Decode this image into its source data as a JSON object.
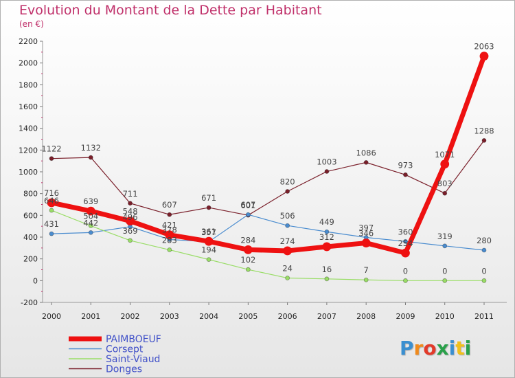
{
  "header": {
    "title": "Evolution du Montant de la Dette par Habitant",
    "unit": "(en €)"
  },
  "logo": {
    "text": "Proxiti",
    "colors": [
      "#3a8fd0",
      "#f08a1c",
      "#e23a2a",
      "#2aa04a",
      "#3a8fd0",
      "#f0c01c",
      "#2aa04a"
    ]
  },
  "chart_data": {
    "type": "line",
    "title": "Evolution du Montant de la Dette par Habitant",
    "ylabel": "(en €)",
    "xlabel": "",
    "x": [
      "2000",
      "2001",
      "2002",
      "2003",
      "2004",
      "2005",
      "2006",
      "2007",
      "2008",
      "2009",
      "2010",
      "2011"
    ],
    "ylim": [
      -200,
      2200
    ],
    "yticks": [
      -200,
      0,
      200,
      400,
      600,
      800,
      1000,
      1200,
      1400,
      1600,
      1800,
      2000,
      2200
    ],
    "grid": false,
    "legend": "bottom-left",
    "series": [
      {
        "name": "Donges",
        "color": "#7a1f2a",
        "width": 1.2,
        "marker": 3,
        "values": [
          1122,
          1132,
          711,
          607,
          671,
          601,
          820,
          1003,
          1086,
          973,
          803,
          1288
        ],
        "labels": [
          "1122",
          "1132",
          "711",
          "607",
          "671",
          "601",
          "820",
          "1003",
          "1086",
          "973",
          "803",
          "1288"
        ]
      },
      {
        "name": "Corsept",
        "color": "#4a8ccf",
        "width": 1.2,
        "marker": 3,
        "values": [
          431,
          442,
          496,
          378,
          357,
          607,
          506,
          449,
          397,
          360,
          319,
          280
        ],
        "labels": [
          "431",
          "442",
          "496",
          "378",
          "357",
          "607",
          "506",
          "449",
          "397",
          "360",
          "319",
          "280"
        ]
      },
      {
        "name": "Saint-Viaud",
        "color": "#99dd66",
        "width": 1.2,
        "marker": 3,
        "values": [
          646,
          504,
          369,
          283,
          194,
          102,
          24,
          16,
          7,
          0,
          0,
          0
        ],
        "labels": [
          "646",
          "504",
          "369",
          "283",
          "194",
          "102",
          "24",
          "16",
          "7",
          "0",
          "0",
          "0"
        ]
      },
      {
        "name": "PAIMBOEUF",
        "color": "#ee1111",
        "width": 7,
        "marker": 6,
        "values": [
          716,
          639,
          548,
          421,
          361,
          284,
          274,
          312,
          346,
          254,
          1071,
          2063
        ],
        "labels": [
          "716",
          "639",
          "548",
          "421",
          "361",
          "284",
          "274",
          "312",
          "346",
          "254",
          "1071",
          "2063"
        ]
      }
    ],
    "legend_entries": [
      "PAIMBOEUF",
      "Corsept",
      "Saint-Viaud",
      "Donges"
    ]
  }
}
